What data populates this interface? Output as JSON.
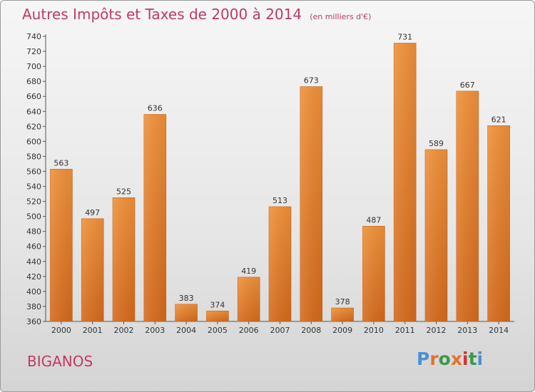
{
  "header": {
    "title": "Autres Impôts et Taxes de 2000 à 2014",
    "unit": "(en milliers d'€)"
  },
  "footer": {
    "commune": "BIGANOS",
    "logo_text": "Proxiti",
    "logo_colors": [
      "#4a8fd6",
      "#e8712a",
      "#3a9a4a",
      "#e8712a",
      "#d83030",
      "#3a9a4a",
      "#4a8fd6"
    ]
  },
  "chart_data": {
    "type": "bar",
    "title": "Autres Impôts et Taxes de 2000 à 2014",
    "subtitle": "(en milliers d'€)",
    "xlabel": "",
    "ylabel": "",
    "categories": [
      "2000",
      "2001",
      "2002",
      "2003",
      "2004",
      "2005",
      "2006",
      "2007",
      "2008",
      "2009",
      "2010",
      "2011",
      "2012",
      "2013",
      "2014"
    ],
    "values": [
      563,
      497,
      525,
      636,
      383,
      374,
      419,
      513,
      673,
      378,
      487,
      731,
      589,
      667,
      621
    ],
    "ylim": [
      360,
      740
    ],
    "yticks": [
      360,
      380,
      400,
      420,
      440,
      460,
      480,
      500,
      520,
      540,
      560,
      580,
      600,
      620,
      640,
      660,
      680,
      700,
      720,
      740
    ],
    "grid": false,
    "bar_color": "#f0913a",
    "bar_color_dark": "#d56a1c"
  }
}
